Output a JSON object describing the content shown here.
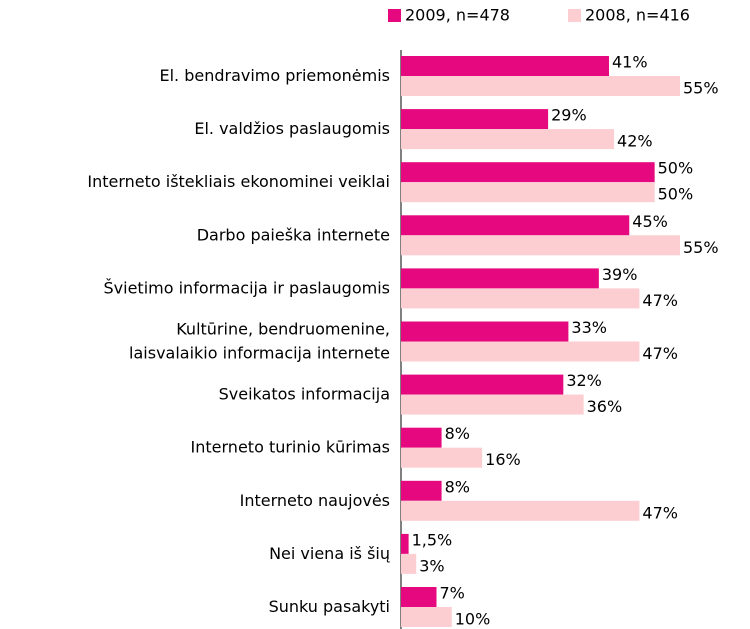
{
  "chart_data": {
    "type": "bar",
    "orientation": "horizontal",
    "categories": [
      "El. bendravimo priemonėmis",
      "El. valdžios paslaugomis",
      "Interneto ištekliais ekonominei veiklai",
      "Darbo paieška internete",
      "Švietimo informacija ir paslaugomis",
      "Kultūrine, bendruomenine,\nlaisvalaikio informacija internete",
      "Sveikatos informacija",
      "Interneto turinio kūrimas",
      "Interneto naujovės",
      "Nei viena iš šių",
      "Sunku pasakyti"
    ],
    "series": [
      {
        "name": "2009, n=478",
        "color": "#e5087f",
        "values": [
          41,
          29,
          50,
          45,
          39,
          33,
          32,
          8,
          8,
          1.5,
          7
        ],
        "value_labels": [
          "41%",
          "29%",
          "50%",
          "45%",
          "39%",
          "33%",
          "32%",
          "8%",
          "8%",
          "1,5%",
          "7%"
        ]
      },
      {
        "name": "2008, n=416",
        "color": "#fccdd1",
        "values": [
          55,
          42,
          50,
          55,
          47,
          47,
          36,
          16,
          47,
          3,
          10
        ],
        "value_labels": [
          "55%",
          "42%",
          "50%",
          "55%",
          "47%",
          "47%",
          "36%",
          "16%",
          "47%",
          "3%",
          "10%"
        ]
      }
    ],
    "legend": "top-right"
  }
}
